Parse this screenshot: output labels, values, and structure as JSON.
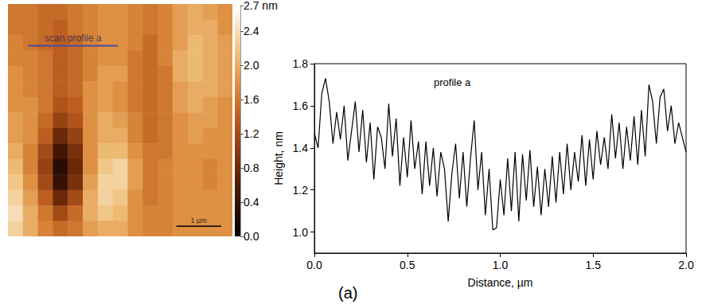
{
  "chart_data": [
    {
      "type": "heatmap",
      "xlim": [
        0,
        5
      ],
      "ylim": [
        0,
        5
      ],
      "tick_labels": false,
      "cells": [
        [
          1.6,
          1.6,
          1.5,
          1.5,
          1.6,
          1.7,
          1.8,
          1.8,
          1.7,
          1.6,
          1.7,
          1.9,
          2.0,
          1.9,
          1.8
        ],
        [
          1.6,
          1.6,
          1.5,
          1.4,
          1.6,
          1.7,
          1.8,
          1.8,
          1.7,
          1.6,
          1.7,
          1.9,
          2.0,
          2.0,
          1.8
        ],
        [
          1.7,
          1.6,
          1.5,
          1.4,
          1.5,
          1.7,
          1.8,
          1.8,
          1.7,
          1.5,
          1.7,
          1.9,
          2.1,
          2.0,
          1.9
        ],
        [
          1.7,
          1.7,
          1.6,
          1.4,
          1.5,
          1.7,
          1.8,
          1.8,
          1.6,
          1.5,
          1.7,
          2.0,
          2.1,
          2.0,
          1.9
        ],
        [
          1.8,
          1.7,
          1.6,
          1.4,
          1.5,
          1.7,
          1.9,
          1.9,
          1.6,
          1.5,
          1.6,
          2.0,
          2.1,
          2.0,
          1.9
        ],
        [
          1.8,
          1.7,
          1.6,
          1.4,
          1.5,
          1.8,
          1.9,
          1.8,
          1.6,
          1.5,
          1.6,
          1.9,
          2.0,
          2.0,
          1.9
        ],
        [
          1.8,
          1.8,
          1.6,
          1.3,
          1.4,
          1.8,
          1.9,
          1.8,
          1.6,
          1.5,
          1.6,
          1.9,
          2.0,
          1.9,
          1.8
        ],
        [
          1.9,
          1.8,
          1.5,
          1.1,
          1.3,
          1.8,
          2.0,
          1.9,
          1.7,
          1.5,
          1.6,
          1.8,
          1.9,
          1.9,
          1.8
        ],
        [
          1.9,
          1.8,
          1.4,
          0.8,
          1.1,
          1.8,
          2.0,
          2.0,
          1.7,
          1.5,
          1.6,
          1.8,
          1.9,
          1.8,
          1.8
        ],
        [
          2.0,
          1.7,
          1.2,
          0.5,
          0.9,
          1.8,
          2.1,
          2.1,
          1.8,
          1.6,
          1.6,
          1.8,
          1.8,
          1.8,
          1.8
        ],
        [
          2.1,
          1.7,
          1.1,
          0.3,
          0.8,
          1.8,
          2.2,
          2.3,
          1.9,
          1.6,
          1.7,
          1.8,
          1.8,
          1.7,
          1.8
        ],
        [
          2.2,
          1.8,
          1.2,
          0.4,
          0.9,
          1.9,
          2.3,
          2.3,
          1.9,
          1.6,
          1.7,
          1.8,
          1.8,
          1.7,
          1.8
        ],
        [
          2.3,
          1.9,
          1.4,
          0.8,
          1.2,
          2.0,
          2.3,
          2.2,
          1.8,
          1.6,
          1.7,
          1.8,
          1.8,
          1.8,
          1.8
        ],
        [
          2.4,
          2.0,
          1.6,
          1.2,
          1.5,
          2.0,
          2.2,
          2.1,
          1.8,
          1.7,
          1.7,
          1.8,
          1.8,
          1.8,
          1.8
        ],
        [
          2.3,
          2.0,
          1.7,
          1.5,
          1.6,
          1.9,
          2.0,
          2.0,
          1.8,
          1.7,
          1.7,
          1.8,
          1.8,
          1.8,
          1.8
        ]
      ],
      "colorbar": {
        "range": [
          0,
          2.7
        ],
        "ticks": [
          {
            "value": 0,
            "label": "0.0"
          },
          0.4,
          0.8,
          1.2,
          1.6,
          {
            "value": 2,
            "label": "2.0"
          },
          2.4,
          {
            "value": 2.7,
            "label": "2.7 nm"
          }
        ]
      },
      "scan_line": {
        "label": "scan profile a",
        "x": [
          0.45,
          2.45
        ],
        "y": 4.1,
        "color": "#4b4b9b"
      },
      "scale_bar": {
        "label": "1 µm",
        "x": [
          3.75,
          4.75
        ],
        "y": 0.22,
        "color": "#000000"
      }
    },
    {
      "type": "line",
      "title": "profile a",
      "panel": "(a)",
      "x_label": "Distance, µm",
      "y_label": "Height, nm",
      "color": "#000000",
      "xlim": [
        0,
        2.0
      ],
      "ylim": [
        0.9,
        1.8
      ],
      "xticks": [
        {
          "value": 0,
          "label": "0.0"
        },
        0.5,
        {
          "value": 1,
          "label": "1.0"
        },
        1.5,
        {
          "value": 2,
          "label": "2.0"
        }
      ],
      "yticks": [
        {
          "value": 1,
          "label": "1.0"
        },
        1.2,
        1.4,
        1.6,
        1.8
      ],
      "x": [
        0.0,
        0.02,
        0.04,
        0.06,
        0.08,
        0.1,
        0.12,
        0.14,
        0.16,
        0.18,
        0.2,
        0.22,
        0.24,
        0.26,
        0.28,
        0.3,
        0.32,
        0.34,
        0.36,
        0.38,
        0.4,
        0.42,
        0.44,
        0.46,
        0.48,
        0.5,
        0.52,
        0.54,
        0.56,
        0.58,
        0.6,
        0.62,
        0.64,
        0.66,
        0.68,
        0.7,
        0.72,
        0.74,
        0.76,
        0.78,
        0.8,
        0.82,
        0.84,
        0.86,
        0.88,
        0.9,
        0.92,
        0.94,
        0.96,
        0.98,
        1.0,
        1.02,
        1.04,
        1.06,
        1.08,
        1.1,
        1.12,
        1.14,
        1.16,
        1.18,
        1.2,
        1.22,
        1.24,
        1.26,
        1.28,
        1.3,
        1.32,
        1.34,
        1.36,
        1.38,
        1.4,
        1.42,
        1.44,
        1.46,
        1.48,
        1.5,
        1.52,
        1.54,
        1.56,
        1.58,
        1.6,
        1.62,
        1.64,
        1.66,
        1.68,
        1.7,
        1.72,
        1.74,
        1.76,
        1.78,
        1.8,
        1.82,
        1.84,
        1.86,
        1.88,
        1.9,
        1.92,
        1.94,
        1.96,
        1.98,
        2.0
      ],
      "values": [
        1.47,
        1.4,
        1.66,
        1.73,
        1.62,
        1.42,
        1.57,
        1.44,
        1.6,
        1.34,
        1.48,
        1.62,
        1.38,
        1.58,
        1.33,
        1.52,
        1.25,
        1.5,
        1.45,
        1.3,
        1.61,
        1.36,
        1.54,
        1.22,
        1.45,
        1.26,
        1.53,
        1.3,
        1.43,
        1.18,
        1.43,
        1.22,
        1.4,
        1.17,
        1.38,
        1.3,
        1.05,
        1.28,
        1.42,
        1.16,
        1.38,
        1.12,
        1.35,
        1.53,
        1.2,
        1.38,
        1.08,
        1.3,
        1.01,
        1.02,
        1.25,
        1.08,
        1.35,
        1.1,
        1.38,
        1.05,
        1.37,
        1.15,
        1.39,
        1.12,
        1.31,
        1.08,
        1.3,
        1.12,
        1.36,
        1.14,
        1.38,
        1.18,
        1.42,
        1.2,
        1.38,
        1.24,
        1.46,
        1.22,
        1.44,
        1.25,
        1.48,
        1.32,
        1.45,
        1.3,
        1.56,
        1.35,
        1.52,
        1.3,
        1.5,
        1.34,
        1.55,
        1.32,
        1.58,
        1.36,
        1.7,
        1.62,
        1.42,
        1.64,
        1.68,
        1.48,
        1.6,
        1.42,
        1.52,
        1.45,
        1.38
      ]
    }
  ]
}
